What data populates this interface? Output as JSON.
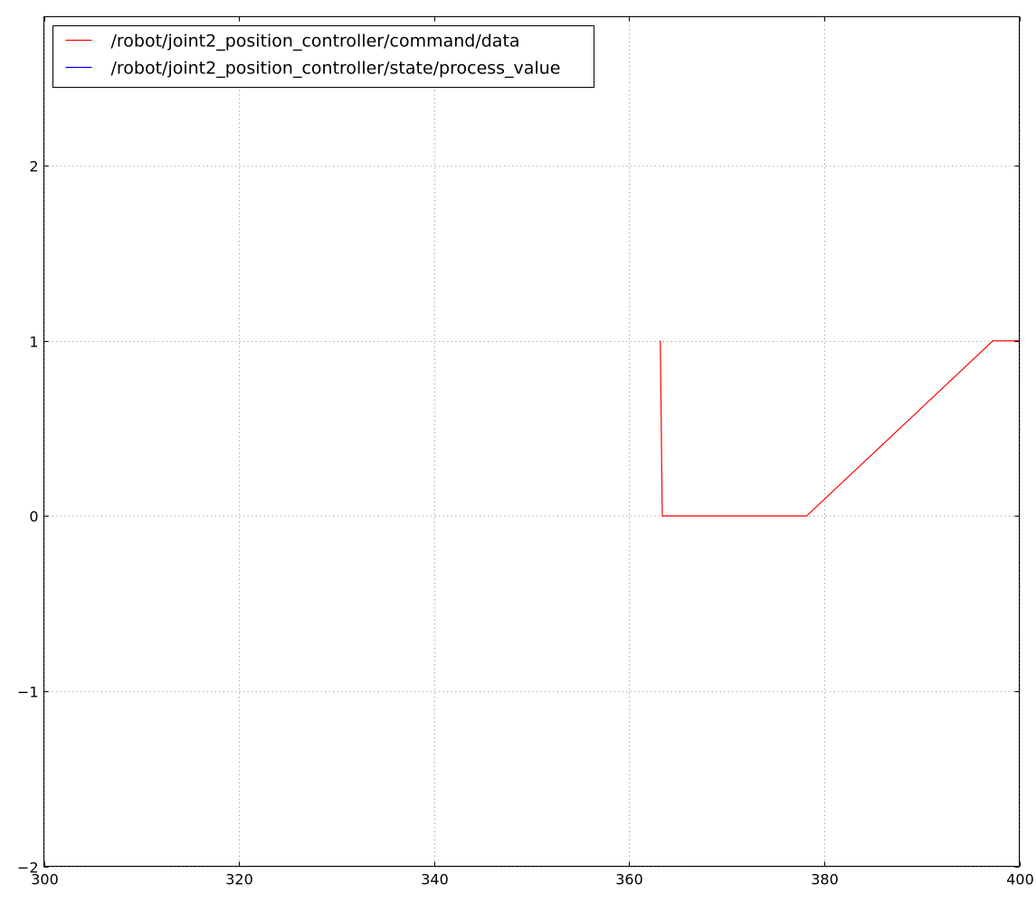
{
  "chart_data": {
    "type": "line",
    "title": "",
    "xlabel": "",
    "ylabel": "",
    "xlim": [
      300,
      400
    ],
    "ylim": [
      -2,
      2.85
    ],
    "x_ticks": [
      300,
      320,
      340,
      360,
      380,
      400
    ],
    "y_ticks": [
      -2,
      -1,
      0,
      1,
      2
    ],
    "x_tick_labels": [
      "300",
      "320",
      "340",
      "360",
      "380",
      "400"
    ],
    "y_tick_labels": [
      "−2",
      "−1",
      "0",
      "1",
      "2"
    ],
    "grid": true,
    "legend_position": "top-left",
    "series": [
      {
        "name": "/robot/joint2_position_controller/command/data",
        "color": "#ff0000",
        "points": [
          [
            363.2,
            1.0
          ],
          [
            363.4,
            0.0
          ],
          [
            378.2,
            0.0
          ],
          [
            397.3,
            1.0
          ],
          [
            400.0,
            1.0
          ]
        ]
      },
      {
        "name": "/robot/joint2_position_controller/state/process_value",
        "color": "#0000ff",
        "points": []
      }
    ]
  }
}
